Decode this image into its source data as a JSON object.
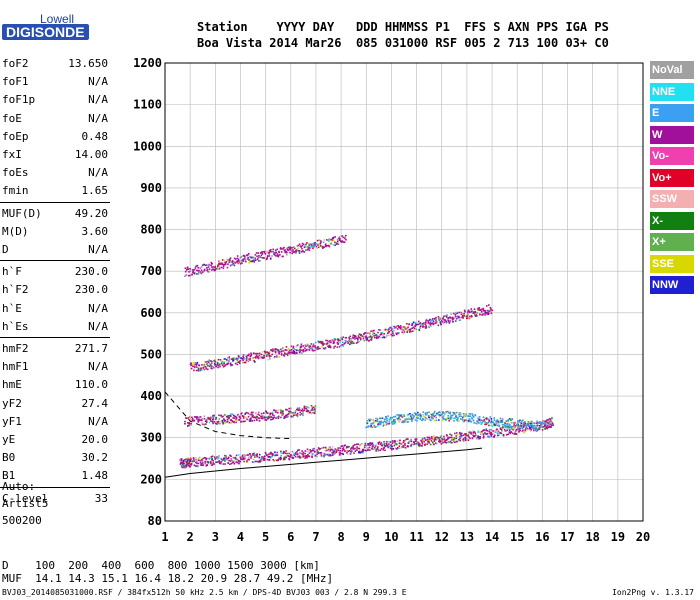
{
  "logo": {
    "top": "Lowell",
    "bottom": "DIGISONDE"
  },
  "header": {
    "labels": "Station    YYYY DAY   DDD HHMMSS P1  FFS S AXN PPS IGA PS",
    "values": "Boa Vista 2014 Mar26  085 031000 RSF 005 2 713 100 03+ C0"
  },
  "parameters": [
    {
      "name": "foF2",
      "value": "13.650"
    },
    {
      "name": "foF1",
      "value": "N/A"
    },
    {
      "name": "foF1p",
      "value": "N/A"
    },
    {
      "name": "foE",
      "value": "N/A"
    },
    {
      "name": "foEp",
      "value": "0.48"
    },
    {
      "name": "fxI",
      "value": "14.00"
    },
    {
      "name": "foEs",
      "value": "N/A"
    },
    {
      "name": "fmin",
      "value": "1.65"
    },
    {
      "name": "MUF(D)",
      "value": "49.20"
    },
    {
      "name": "M(D)",
      "value": "3.60"
    },
    {
      "name": "D",
      "value": "N/A"
    },
    {
      "name": "h`F",
      "value": "230.0"
    },
    {
      "name": "h`F2",
      "value": "230.0"
    },
    {
      "name": "h`E",
      "value": "N/A"
    },
    {
      "name": "h`Es",
      "value": "N/A"
    },
    {
      "name": "hmF2",
      "value": "271.7"
    },
    {
      "name": "hmF1",
      "value": "N/A"
    },
    {
      "name": "hmE",
      "value": "110.0"
    },
    {
      "name": "yF2",
      "value": "27.4"
    },
    {
      "name": "yF1",
      "value": "N/A"
    },
    {
      "name": "yE",
      "value": "20.0"
    },
    {
      "name": "B0",
      "value": "30.2"
    },
    {
      "name": "B1",
      "value": "1.48"
    },
    {
      "name": "C-level",
      "value": "33"
    }
  ],
  "auto": {
    "label": "Auto:",
    "artist": "Artist5",
    "code": "500200"
  },
  "legend": [
    {
      "name": "NoVal",
      "color": "#a0a0a0"
    },
    {
      "name": "NNE",
      "color": "#22e0f0"
    },
    {
      "name": "E",
      "color": "#3ca0f0"
    },
    {
      "name": "W",
      "color": "#a0109a"
    },
    {
      "name": "Vo-",
      "color": "#f040b0"
    },
    {
      "name": "Vo+",
      "color": "#e00028"
    },
    {
      "name": "SSW",
      "color": "#f4b0b0"
    },
    {
      "name": "X-",
      "color": "#108010"
    },
    {
      "name": "X+",
      "color": "#60b050"
    },
    {
      "name": "SSE",
      "color": "#d8d800"
    },
    {
      "name": "NNW",
      "color": "#2020d0"
    }
  ],
  "chart_data": {
    "type": "scatter",
    "title": "",
    "xlabel": "",
    "ylabel": "",
    "xlim": [
      1,
      20
    ],
    "ylim": [
      80,
      1200
    ],
    "x_ticks": [
      1,
      2,
      3,
      4,
      5,
      6,
      7,
      8,
      9,
      10,
      11,
      12,
      13,
      14,
      15,
      16,
      17,
      18,
      19,
      20
    ],
    "y_ticks": [
      80,
      200,
      300,
      400,
      500,
      600,
      700,
      800,
      900,
      1000,
      1100,
      1200
    ],
    "grid": true,
    "traces": [
      {
        "name": "F2 O-trace",
        "color": "#b01090",
        "x": [
          1.6,
          2,
          3,
          4,
          5,
          6,
          7,
          8,
          9,
          10,
          11,
          12,
          13,
          14,
          15,
          16,
          16.4
        ],
        "y": [
          240,
          243,
          247,
          251,
          256,
          261,
          266,
          272,
          278,
          284,
          291,
          298,
          306,
          314,
          322,
          332,
          340
        ]
      },
      {
        "name": "F2 X-trace",
        "color": "#30a0e0",
        "x": [
          9,
          10,
          11,
          12,
          13,
          14,
          15,
          16
        ],
        "y": [
          335,
          345,
          352,
          355,
          350,
          340,
          335,
          330
        ]
      },
      {
        "name": "F2 multihop",
        "color": "#b01090",
        "x": [
          2,
          3,
          4,
          5,
          6,
          7,
          8,
          9,
          10,
          11,
          12,
          13,
          14
        ],
        "y": [
          470,
          480,
          490,
          500,
          512,
          522,
          532,
          545,
          557,
          570,
          585,
          598,
          612
        ]
      },
      {
        "name": "F2 triple hop",
        "color": "#b01090",
        "x": [
          1.8,
          3,
          4,
          5,
          6,
          7,
          8.2
        ],
        "y": [
          700,
          715,
          730,
          740,
          752,
          765,
          780
        ]
      },
      {
        "name": "sporadic high",
        "color": "#b01090",
        "x": [
          1.8,
          3,
          4,
          5,
          6,
          7
        ],
        "y": [
          340,
          345,
          350,
          355,
          362,
          370
        ]
      }
    ],
    "profile_line": {
      "x": [
        1,
        2,
        3,
        4,
        5,
        6,
        7,
        8,
        9,
        10,
        11,
        12,
        13,
        13.6
      ],
      "y": [
        205,
        214,
        220,
        226,
        231,
        236,
        241,
        246,
        251,
        256,
        261,
        266,
        271,
        275
      ]
    },
    "profile_dashed": {
      "x": [
        1,
        2,
        3,
        4,
        5,
        6
      ],
      "y": [
        410,
        340,
        315,
        305,
        300,
        298
      ]
    }
  },
  "bottom": {
    "d_row": "D    100  200  400  600  800 1000 1500 3000 [km]",
    "muf_row": "MUF  14.1 14.3 15.1 16.4 18.2 20.9 28.7 49.2 [MHz]"
  },
  "footer": "BVJ03_2014085031000.RSF / 384fx512h 50 kHz 2.5 km / DPS-4D BVJ03 003 / 2.8 N 299.3 E",
  "version": "Ion2Png v. 1.3.17"
}
